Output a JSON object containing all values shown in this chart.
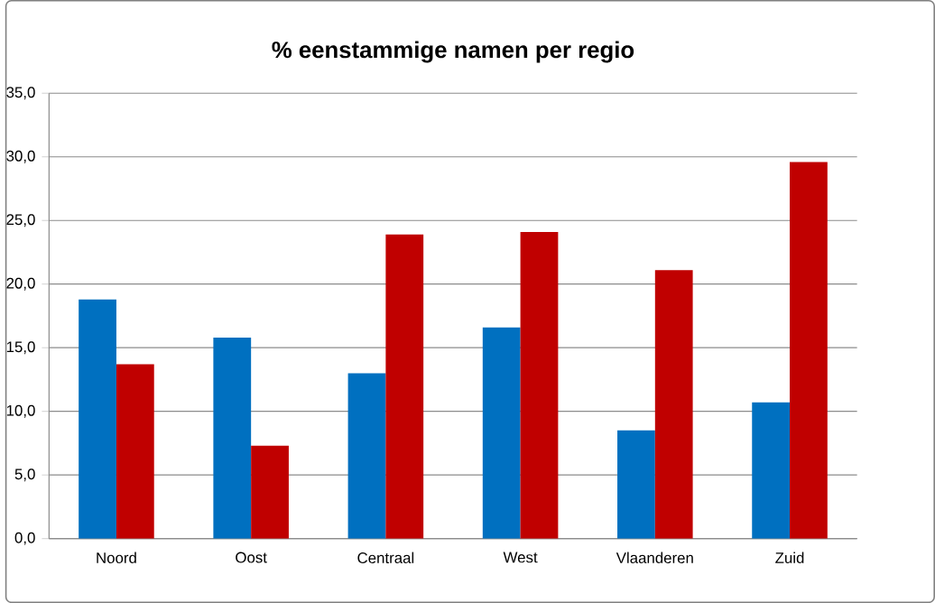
{
  "chart_data": {
    "type": "bar",
    "title": "% eenstammige namen per regio",
    "categories": [
      "Noord",
      "Oost",
      "Centraal",
      "West",
      "Vlaanderen",
      "Zuid"
    ],
    "series": [
      {
        "color": "#0070c0",
        "values": [
          18.8,
          15.8,
          13.0,
          16.6,
          8.5,
          10.7
        ]
      },
      {
        "color": "#c00000",
        "values": [
          13.7,
          7.3,
          23.9,
          24.1,
          21.1,
          29.6
        ]
      }
    ],
    "ylim": [
      0,
      35
    ],
    "yticks": [
      {
        "value": 0,
        "label": "0,0"
      },
      {
        "value": 5,
        "label": "5,0"
      },
      {
        "value": 10,
        "label": "10,0"
      },
      {
        "value": 15,
        "label": "15,0"
      },
      {
        "value": 20,
        "label": "20,0"
      },
      {
        "value": 25,
        "label": "25,0"
      },
      {
        "value": 30,
        "label": "30,0"
      },
      {
        "value": 35,
        "label": "35,0"
      }
    ],
    "grid": "y",
    "legend": false
  }
}
